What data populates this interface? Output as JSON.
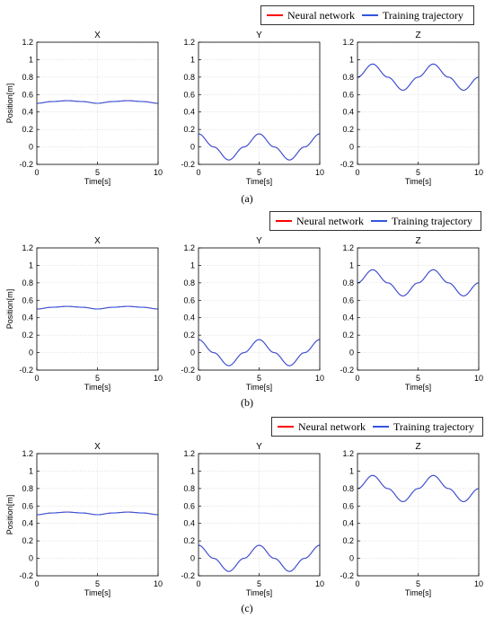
{
  "legend": {
    "entries": [
      {
        "label": "Neural network",
        "color": "#ff0000"
      },
      {
        "label": "Training trajectory",
        "color": "#3355dd"
      }
    ]
  },
  "panels": [
    {
      "caption": "(a)"
    },
    {
      "caption": "(b)"
    },
    {
      "caption": "(c)"
    }
  ],
  "axes": {
    "xlabel": "Time[s]",
    "ylabel": "Position[m]",
    "xlim": [
      0,
      10
    ],
    "ylim": [
      -0.2,
      1.2
    ],
    "xticks": [
      "0",
      "5",
      "10"
    ],
    "yticks": [
      "-0.2",
      "0",
      "0.2",
      "0.4",
      "0.6",
      "0.8",
      "1",
      "1.2"
    ],
    "grid": true
  },
  "chart_data": [
    {
      "panel": "a",
      "type": "line",
      "title": "X",
      "xlabel": "Time[s]",
      "ylabel": "Position[m]",
      "xlim": [
        0,
        10
      ],
      "ylim": [
        -0.2,
        1.2
      ],
      "x": [
        0,
        1.25,
        2.5,
        3.75,
        5,
        6.25,
        7.5,
        8.75,
        10
      ],
      "series": [
        {
          "name": "Training trajectory",
          "values": [
            0.5,
            0.52,
            0.53,
            0.52,
            0.5,
            0.52,
            0.53,
            0.52,
            0.5
          ]
        },
        {
          "name": "Neural network",
          "values": [
            0.5,
            0.52,
            0.53,
            0.52,
            0.5,
            0.52,
            0.53,
            0.52,
            0.5
          ]
        }
      ]
    },
    {
      "panel": "a",
      "type": "line",
      "title": "Y",
      "xlabel": "Time[s]",
      "ylabel": "",
      "xlim": [
        0,
        10
      ],
      "ylim": [
        -0.2,
        1.2
      ],
      "x": [
        0,
        1.25,
        2.5,
        3.75,
        5,
        6.25,
        7.5,
        8.75,
        10
      ],
      "series": [
        {
          "name": "Training trajectory",
          "values": [
            0.15,
            0,
            -0.15,
            0,
            0.15,
            0,
            -0.15,
            0,
            0.15
          ]
        },
        {
          "name": "Neural network",
          "values": [
            0.15,
            0,
            -0.15,
            0,
            0.15,
            0,
            -0.15,
            0,
            0.15
          ]
        }
      ]
    },
    {
      "panel": "a",
      "type": "line",
      "title": "Z",
      "xlabel": "Time[s]",
      "ylabel": "",
      "xlim": [
        0,
        10
      ],
      "ylim": [
        -0.2,
        1.2
      ],
      "x": [
        0,
        1.25,
        2.5,
        3.75,
        5,
        6.25,
        7.5,
        8.75,
        10
      ],
      "series": [
        {
          "name": "Training trajectory",
          "values": [
            0.8,
            0.95,
            0.8,
            0.65,
            0.8,
            0.95,
            0.8,
            0.65,
            0.8
          ]
        },
        {
          "name": "Neural network",
          "values": [
            0.8,
            0.95,
            0.8,
            0.65,
            0.8,
            0.95,
            0.8,
            0.65,
            0.8
          ]
        }
      ]
    },
    {
      "panel": "b",
      "type": "line",
      "title": "X",
      "xlabel": "Time[s]",
      "ylabel": "Position[m]",
      "xlim": [
        0,
        10
      ],
      "ylim": [
        -0.2,
        1.2
      ],
      "x": [
        0,
        1.25,
        2.5,
        3.75,
        5,
        6.25,
        7.5,
        8.75,
        10
      ],
      "series": [
        {
          "name": "Training trajectory",
          "values": [
            0.5,
            0.52,
            0.53,
            0.52,
            0.5,
            0.52,
            0.53,
            0.52,
            0.5
          ]
        },
        {
          "name": "Neural network",
          "values": [
            0.5,
            0.52,
            0.53,
            0.52,
            0.5,
            0.52,
            0.53,
            0.52,
            0.5
          ]
        }
      ]
    },
    {
      "panel": "b",
      "type": "line",
      "title": "Y",
      "xlabel": "Time[s]",
      "ylabel": "",
      "xlim": [
        0,
        10
      ],
      "ylim": [
        -0.2,
        1.2
      ],
      "x": [
        0,
        1.25,
        2.5,
        3.75,
        5,
        6.25,
        7.5,
        8.75,
        10
      ],
      "series": [
        {
          "name": "Training trajectory",
          "values": [
            0.15,
            0,
            -0.15,
            0,
            0.15,
            0,
            -0.15,
            0,
            0.15
          ]
        },
        {
          "name": "Neural network",
          "values": [
            0.15,
            0,
            -0.15,
            0,
            0.15,
            0,
            -0.15,
            0,
            0.15
          ]
        }
      ]
    },
    {
      "panel": "b",
      "type": "line",
      "title": "Z",
      "xlabel": "Time[s]",
      "ylabel": "",
      "xlim": [
        0,
        10
      ],
      "ylim": [
        -0.2,
        1.2
      ],
      "x": [
        0,
        1.25,
        2.5,
        3.75,
        5,
        6.25,
        7.5,
        8.75,
        10
      ],
      "series": [
        {
          "name": "Training trajectory",
          "values": [
            0.8,
            0.95,
            0.8,
            0.65,
            0.8,
            0.95,
            0.8,
            0.65,
            0.8
          ]
        },
        {
          "name": "Neural network",
          "values": [
            0.8,
            0.95,
            0.8,
            0.65,
            0.8,
            0.95,
            0.8,
            0.65,
            0.8
          ]
        }
      ]
    },
    {
      "panel": "c",
      "type": "line",
      "title": "X",
      "xlabel": "Time[s]",
      "ylabel": "Position[m]",
      "xlim": [
        0,
        10
      ],
      "ylim": [
        -0.2,
        1.2
      ],
      "x": [
        0,
        1.25,
        2.5,
        3.75,
        5,
        6.25,
        7.5,
        8.75,
        10
      ],
      "series": [
        {
          "name": "Training trajectory",
          "values": [
            0.5,
            0.52,
            0.53,
            0.52,
            0.5,
            0.52,
            0.53,
            0.52,
            0.5
          ]
        },
        {
          "name": "Neural network",
          "values": [
            0.5,
            0.52,
            0.53,
            0.52,
            0.5,
            0.52,
            0.53,
            0.52,
            0.5
          ]
        }
      ]
    },
    {
      "panel": "c",
      "type": "line",
      "title": "Y",
      "xlabel": "Time[s]",
      "ylabel": "",
      "xlim": [
        0,
        10
      ],
      "ylim": [
        -0.2,
        1.2
      ],
      "x": [
        0,
        1.25,
        2.5,
        3.75,
        5,
        6.25,
        7.5,
        8.75,
        10
      ],
      "series": [
        {
          "name": "Training trajectory",
          "values": [
            0.15,
            0,
            -0.15,
            0,
            0.15,
            0,
            -0.15,
            0,
            0.15
          ]
        },
        {
          "name": "Neural network",
          "values": [
            0.15,
            0,
            -0.15,
            0,
            0.15,
            0,
            -0.15,
            0,
            0.15
          ]
        }
      ]
    },
    {
      "panel": "c",
      "type": "line",
      "title": "Z",
      "xlabel": "Time[s]",
      "ylabel": "",
      "xlim": [
        0,
        10
      ],
      "ylim": [
        -0.2,
        1.2
      ],
      "x": [
        0,
        1.25,
        2.5,
        3.75,
        5,
        6.25,
        7.5,
        8.75,
        10
      ],
      "series": [
        {
          "name": "Training trajectory",
          "values": [
            0.8,
            0.95,
            0.8,
            0.65,
            0.8,
            0.95,
            0.8,
            0.65,
            0.8
          ]
        },
        {
          "name": "Neural network",
          "values": [
            0.8,
            0.95,
            0.8,
            0.65,
            0.8,
            0.95,
            0.8,
            0.65,
            0.8
          ]
        }
      ]
    }
  ]
}
